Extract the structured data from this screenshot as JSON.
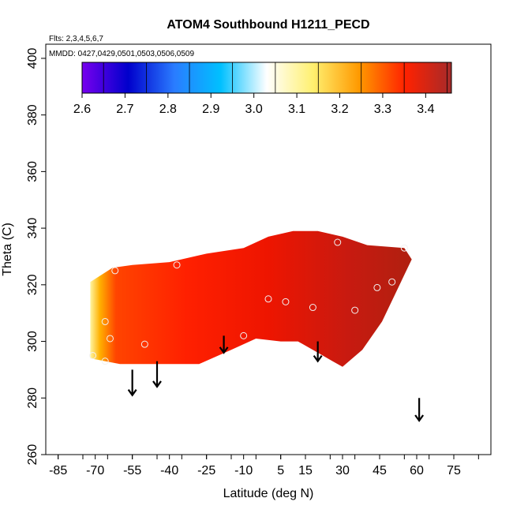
{
  "chart_data": {
    "type": "heatmap",
    "title": "ATOM4 Southbound H1211_PECD",
    "subtitle_flights": "Flts: 2,3,4,5,6,7",
    "subtitle_dates": "MMDD: 0427,0429,0501,0503,0506,0509",
    "xlabel": "Latitude (deg N)",
    "ylabel": "Theta (C)",
    "xlim": [
      -90,
      90
    ],
    "ylim": [
      260,
      405
    ],
    "x_ticks": [
      "-85",
      "-70",
      "-55",
      "-40",
      "-25",
      "-10",
      "5",
      "15",
      "30",
      "45",
      "60",
      "75"
    ],
    "y_ticks": [
      "260",
      "280",
      "300",
      "320",
      "340",
      "360",
      "380",
      "400"
    ],
    "colorbar": {
      "ticks": [
        "2.6",
        "2.7",
        "2.8",
        "2.9",
        "3.0",
        "3.1",
        "3.2",
        "3.3",
        "3.4"
      ],
      "range": [
        2.6,
        3.46
      ],
      "colors": [
        "#7700ee",
        "#0000cc",
        "#2a7cff",
        "#00c0ff",
        "#ffffff",
        "#fff070",
        "#ff9900",
        "#ff2200",
        "#a52a2a"
      ]
    },
    "field_region": {
      "upper_boundary": [
        [
          -72,
          321
        ],
        [
          -63,
          326
        ],
        [
          -55,
          327
        ],
        [
          -40,
          328
        ],
        [
          -25,
          331
        ],
        [
          -10,
          333
        ],
        [
          0,
          337
        ],
        [
          10,
          339
        ],
        [
          20,
          339
        ],
        [
          30,
          337
        ],
        [
          40,
          334
        ],
        [
          55,
          333
        ],
        [
          58,
          329
        ]
      ],
      "lower_boundary": [
        [
          -72,
          294
        ],
        [
          -60,
          292
        ],
        [
          -45,
          292
        ],
        [
          -28,
          292
        ],
        [
          -15,
          297
        ],
        [
          -5,
          301
        ],
        [
          5,
          300
        ],
        [
          12,
          300
        ],
        [
          20,
          296
        ],
        [
          26,
          293
        ],
        [
          30,
          291
        ],
        [
          38,
          297
        ],
        [
          46,
          307
        ],
        [
          58,
          329
        ]
      ]
    },
    "field_values_sample": [
      {
        "lat": -70,
        "theta": 300,
        "value": 3.15
      },
      {
        "lat": -69,
        "theta": 320,
        "value": 3.18
      },
      {
        "lat": -62,
        "theta": 300,
        "value": 3.32
      },
      {
        "lat": -50,
        "theta": 315,
        "value": 3.33
      },
      {
        "lat": -30,
        "theta": 320,
        "value": 3.37
      },
      {
        "lat": 0,
        "theta": 310,
        "value": 3.36
      },
      {
        "lat": 20,
        "theta": 320,
        "value": 3.4
      },
      {
        "lat": 40,
        "theta": 325,
        "value": 3.44
      }
    ],
    "observations": [
      {
        "lat": -71,
        "theta": 295
      },
      {
        "lat": -66,
        "theta": 293
      },
      {
        "lat": -66,
        "theta": 307
      },
      {
        "lat": -64,
        "theta": 301
      },
      {
        "lat": -62,
        "theta": 325
      },
      {
        "lat": -50,
        "theta": 299
      },
      {
        "lat": -37,
        "theta": 327
      },
      {
        "lat": -10,
        "theta": 302
      },
      {
        "lat": 0,
        "theta": 315
      },
      {
        "lat": 7,
        "theta": 314
      },
      {
        "lat": 18,
        "theta": 312
      },
      {
        "lat": 28,
        "theta": 335
      },
      {
        "lat": 35,
        "theta": 311
      },
      {
        "lat": 44,
        "theta": 319
      },
      {
        "lat": 50,
        "theta": 321
      },
      {
        "lat": 55,
        "theta": 333
      }
    ],
    "arrows": [
      {
        "lat": -55,
        "theta_top": 290,
        "theta_tip": 281
      },
      {
        "lat": -45,
        "theta_top": 293,
        "theta_tip": 284
      },
      {
        "lat": -18,
        "theta_top": 302,
        "theta_tip": 296
      },
      {
        "lat": 20,
        "theta_top": 300,
        "theta_tip": 293
      },
      {
        "lat": 61,
        "theta_top": 280,
        "theta_tip": 272
      }
    ]
  }
}
